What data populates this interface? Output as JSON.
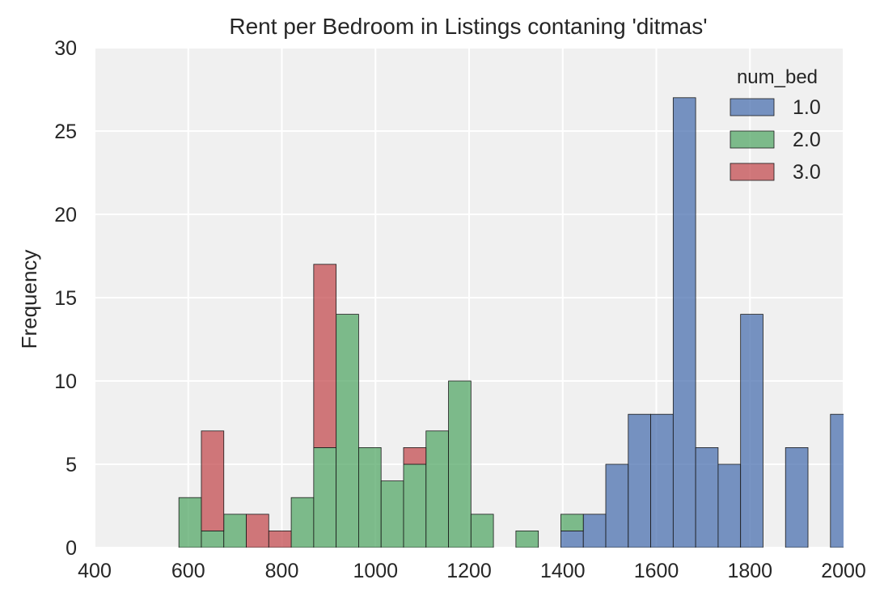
{
  "chart_data": {
    "type": "bar",
    "stacked": true,
    "title": "Rent per Bedroom in Listings contaning 'ditmas'",
    "xlabel": "",
    "ylabel": "Frequency",
    "xlim": [
      400,
      2000
    ],
    "ylim": [
      0,
      30
    ],
    "xticks": [
      "400",
      "600",
      "800",
      "1000",
      "1200",
      "1400",
      "1600",
      "1800",
      "2000"
    ],
    "yticks": [
      "0",
      "5",
      "10",
      "15",
      "20",
      "25",
      "30"
    ],
    "grid": true,
    "legend": {
      "title": "num_bed",
      "position": "top-right"
    },
    "series": [
      {
        "name": "1.0",
        "color": "#4c72b0",
        "bins": [
          {
            "x0": 1396,
            "x1": 1444,
            "value": 1
          },
          {
            "x0": 1444,
            "x1": 1492,
            "value": 2
          },
          {
            "x0": 1492,
            "x1": 1540,
            "value": 5
          },
          {
            "x0": 1540,
            "x1": 1588,
            "value": 8
          },
          {
            "x0": 1588,
            "x1": 1636,
            "value": 8
          },
          {
            "x0": 1636,
            "x1": 1684,
            "value": 27
          },
          {
            "x0": 1684,
            "x1": 1732,
            "value": 6
          },
          {
            "x0": 1732,
            "x1": 1780,
            "value": 5
          },
          {
            "x0": 1780,
            "x1": 1828,
            "value": 14
          },
          {
            "x0": 1876,
            "x1": 1924,
            "value": 6
          },
          {
            "x0": 1972,
            "x1": 2020,
            "value": 8
          }
        ]
      },
      {
        "name": "2.0",
        "color": "#55a868",
        "bins": [
          {
            "x0": 580,
            "x1": 628,
            "value": 3
          },
          {
            "x0": 628,
            "x1": 676,
            "value": 1
          },
          {
            "x0": 676,
            "x1": 724,
            "value": 2
          },
          {
            "x0": 820,
            "x1": 868,
            "value": 3
          },
          {
            "x0": 868,
            "x1": 916,
            "value": 6
          },
          {
            "x0": 916,
            "x1": 964,
            "value": 14
          },
          {
            "x0": 964,
            "x1": 1012,
            "value": 6
          },
          {
            "x0": 1012,
            "x1": 1060,
            "value": 4
          },
          {
            "x0": 1060,
            "x1": 1108,
            "value": 5
          },
          {
            "x0": 1108,
            "x1": 1156,
            "value": 7
          },
          {
            "x0": 1156,
            "x1": 1204,
            "value": 10
          },
          {
            "x0": 1204,
            "x1": 1252,
            "value": 2
          },
          {
            "x0": 1300,
            "x1": 1348,
            "value": 1
          },
          {
            "x0": 1396,
            "x1": 1444,
            "value": 1
          }
        ]
      },
      {
        "name": "3.0",
        "color": "#c44e52",
        "bins": [
          {
            "x0": 628,
            "x1": 676,
            "value": 6
          },
          {
            "x0": 724,
            "x1": 772,
            "value": 2
          },
          {
            "x0": 772,
            "x1": 820,
            "value": 1
          },
          {
            "x0": 868,
            "x1": 916,
            "value": 11
          },
          {
            "x0": 1060,
            "x1": 1108,
            "value": 1
          }
        ]
      }
    ]
  }
}
